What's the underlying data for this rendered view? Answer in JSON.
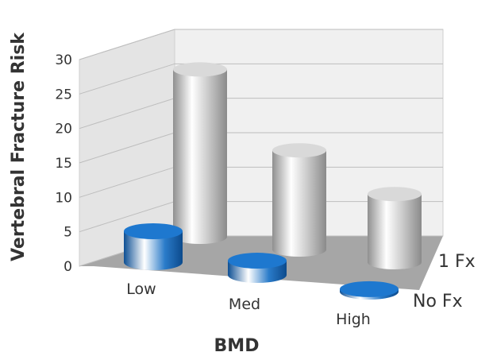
{
  "chart_data": {
    "type": "bar",
    "style": "3d-cylinder",
    "xlabel": "BMD",
    "ylabel": "Vertebral Fracture Risk",
    "categories": [
      "Low",
      "Med",
      "High"
    ],
    "series": [
      {
        "name": "1 Fx",
        "values": [
          27,
          16,
          11
        ],
        "color": "#c4c4c4"
      },
      {
        "name": "No Fx",
        "values": [
          5,
          2.3,
          0.4
        ],
        "color": "#1a6ec0"
      }
    ],
    "ylim": [
      0,
      30
    ],
    "yticks": [
      0,
      5,
      10,
      15,
      20,
      25,
      30
    ],
    "grid": true,
    "wall_color": "#f0f0f0",
    "floor_color": "#a6a6a6"
  }
}
